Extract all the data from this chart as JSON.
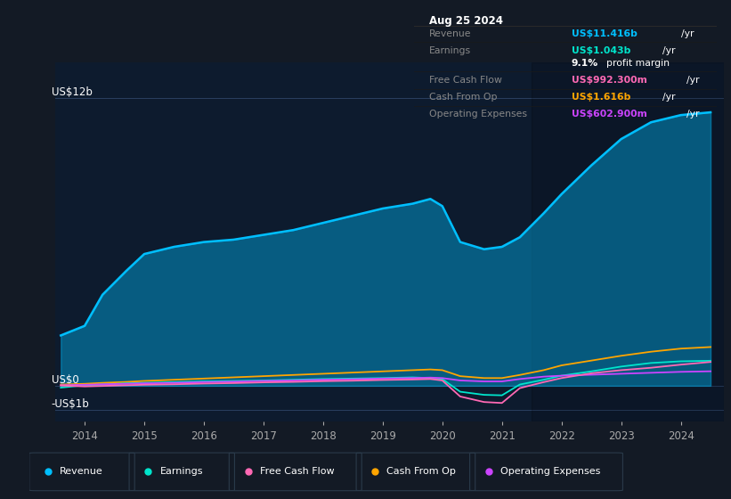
{
  "bg_color": "#131a25",
  "plot_bg_color": "#0d1b2e",
  "title_date": "Aug 25 2024",
  "years": [
    2013.6,
    2014.0,
    2014.3,
    2014.7,
    2015.0,
    2015.5,
    2016.0,
    2016.5,
    2017.0,
    2017.5,
    2018.0,
    2018.5,
    2019.0,
    2019.5,
    2019.8,
    2020.0,
    2020.3,
    2020.7,
    2021.0,
    2021.3,
    2021.7,
    2022.0,
    2022.5,
    2023.0,
    2023.5,
    2024.0,
    2024.5
  ],
  "revenue": [
    2.1,
    2.5,
    3.8,
    4.8,
    5.5,
    5.8,
    6.0,
    6.1,
    6.3,
    6.5,
    6.8,
    7.1,
    7.4,
    7.6,
    7.8,
    7.5,
    6.0,
    5.7,
    5.8,
    6.2,
    7.2,
    8.0,
    9.2,
    10.3,
    11.0,
    11.3,
    11.416
  ],
  "earnings": [
    -0.08,
    0.02,
    0.05,
    0.1,
    0.12,
    0.15,
    0.18,
    0.2,
    0.22,
    0.25,
    0.28,
    0.3,
    0.32,
    0.35,
    0.32,
    0.28,
    -0.25,
    -0.38,
    -0.4,
    0.05,
    0.25,
    0.42,
    0.6,
    0.8,
    0.95,
    1.02,
    1.043
  ],
  "free_cash_flow": [
    0.01,
    -0.03,
    -0.01,
    0.02,
    0.04,
    0.06,
    0.09,
    0.11,
    0.14,
    0.16,
    0.19,
    0.21,
    0.24,
    0.26,
    0.28,
    0.22,
    -0.45,
    -0.68,
    -0.72,
    -0.1,
    0.15,
    0.32,
    0.52,
    0.65,
    0.75,
    0.88,
    0.9923
  ],
  "cash_from_op": [
    0.05,
    0.08,
    0.12,
    0.16,
    0.2,
    0.25,
    0.3,
    0.35,
    0.4,
    0.45,
    0.5,
    0.55,
    0.6,
    0.65,
    0.68,
    0.65,
    0.4,
    0.32,
    0.32,
    0.45,
    0.65,
    0.85,
    1.05,
    1.25,
    1.42,
    1.55,
    1.616
  ],
  "op_expenses": [
    0.02,
    0.04,
    0.06,
    0.08,
    0.1,
    0.12,
    0.15,
    0.17,
    0.2,
    0.22,
    0.25,
    0.27,
    0.3,
    0.32,
    0.34,
    0.32,
    0.22,
    0.18,
    0.18,
    0.28,
    0.38,
    0.42,
    0.46,
    0.5,
    0.54,
    0.58,
    0.6029
  ],
  "revenue_color": "#00bfff",
  "earnings_color": "#00e5cc",
  "free_cash_flow_color": "#ff69b4",
  "cash_from_op_color": "#ffa500",
  "op_expenses_color": "#cc44ff",
  "ylim_min": -1.5,
  "ylim_max": 13.5,
  "xticks": [
    2014,
    2015,
    2016,
    2017,
    2018,
    2019,
    2020,
    2021,
    2022,
    2023,
    2024
  ],
  "info_box": {
    "date": "Aug 25 2024",
    "revenue_label": "Revenue",
    "revenue_val": "US$11.416b",
    "earnings_label": "Earnings",
    "earnings_val": "US$1.043b",
    "margin_val": "9.1%",
    "fcf_label": "Free Cash Flow",
    "fcf_val": "US$992.300m",
    "cashop_label": "Cash From Op",
    "cashop_val": "US$1.616b",
    "opex_label": "Operating Expenses",
    "opex_val": "US$602.900m"
  },
  "legend_items": [
    {
      "label": "Revenue",
      "color": "#00bfff"
    },
    {
      "label": "Earnings",
      "color": "#00e5cc"
    },
    {
      "label": "Free Cash Flow",
      "color": "#ff69b4"
    },
    {
      "label": "Cash From Op",
      "color": "#ffa500"
    },
    {
      "label": "Operating Expenses",
      "color": "#cc44ff"
    }
  ]
}
